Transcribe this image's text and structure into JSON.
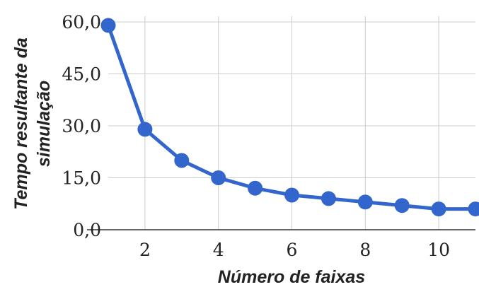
{
  "chart_data": {
    "type": "line",
    "title": "",
    "xlabel": "Número de faixas",
    "ylabel_lines": [
      "Tempo resultante da",
      "simulação"
    ],
    "xlim": [
      1,
      11
    ],
    "ylim": [
      0,
      60
    ],
    "x_ticks": [
      {
        "value": 2,
        "label": "2"
      },
      {
        "value": 4,
        "label": "4"
      },
      {
        "value": 6,
        "label": "6"
      },
      {
        "value": 8,
        "label": "8"
      },
      {
        "value": 10,
        "label": "10"
      }
    ],
    "y_ticks": [
      {
        "value": 0,
        "label": "0,0"
      },
      {
        "value": 15,
        "label": "15,0"
      },
      {
        "value": 30,
        "label": "30,0"
      },
      {
        "value": 45,
        "label": "45,0"
      },
      {
        "value": 60,
        "label": "60,0"
      }
    ],
    "grid": true,
    "series": [
      {
        "color": "#3366cc",
        "x": [
          1,
          2,
          3,
          4,
          5,
          6,
          7,
          8,
          9,
          10,
          11
        ],
        "y": [
          59,
          29,
          20,
          15,
          12,
          10,
          9,
          8,
          7,
          6,
          6
        ]
      }
    ]
  }
}
